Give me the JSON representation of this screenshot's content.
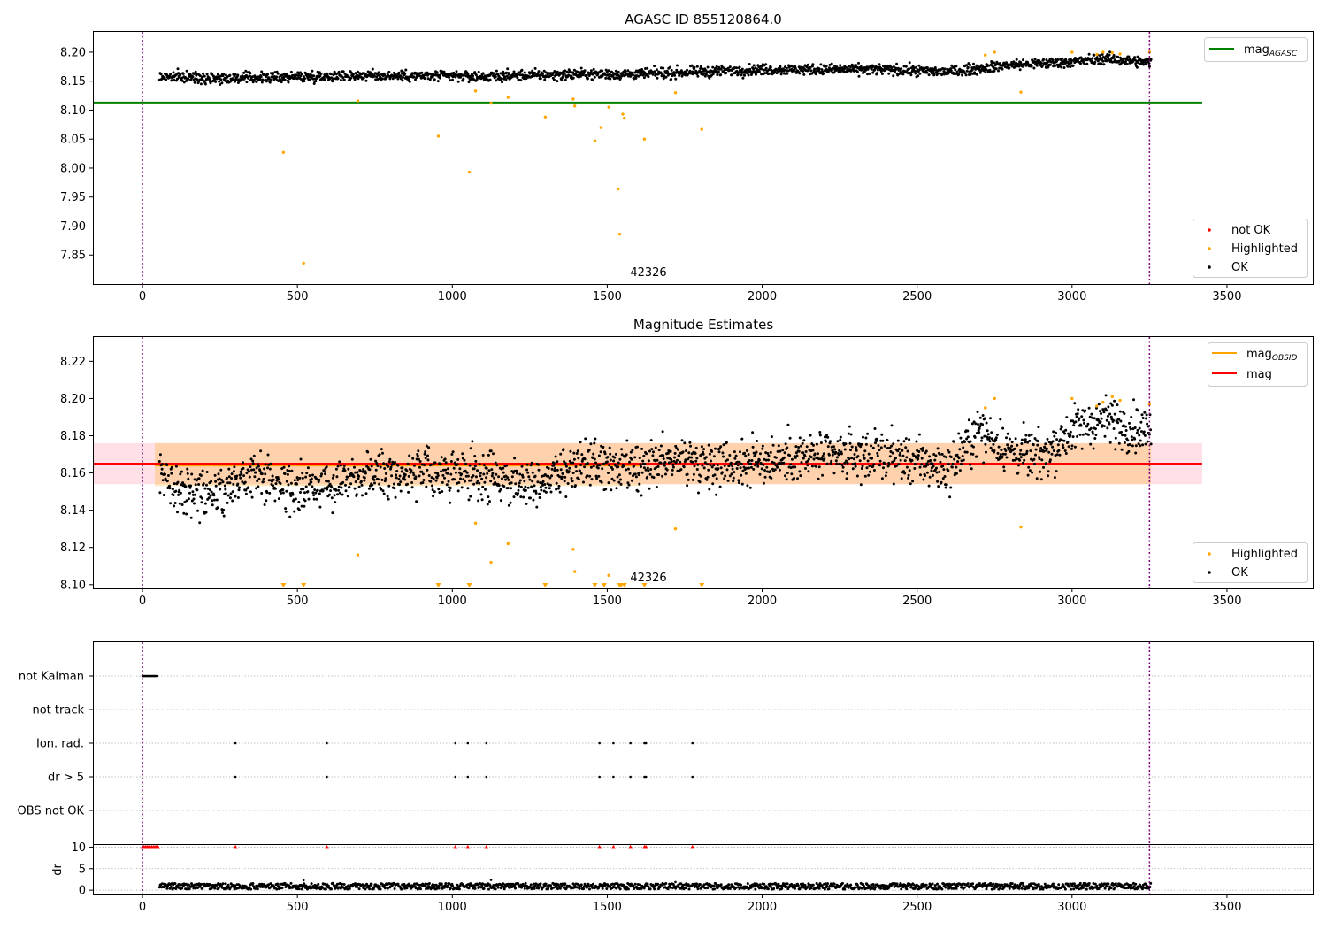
{
  "chart_data": [
    {
      "type": "scatter",
      "title": "AGASC ID 855120864.0",
      "xlim": [
        -160,
        3780
      ],
      "ylim": [
        7.8,
        8.235
      ],
      "xticks": [
        0,
        500,
        1000,
        1500,
        2000,
        2500,
        3000,
        3500
      ],
      "yticks": [
        "7.85",
        "7.90",
        "7.95",
        "8.00",
        "8.05",
        "8.10",
        "8.15",
        "8.20"
      ],
      "vlines": [
        0,
        3250
      ],
      "annotation": {
        "text": "42326",
        "x": 1635,
        "y": 7.815
      },
      "hline": {
        "name": "mag_AGASC",
        "y": 8.113,
        "x_end": 3420,
        "color": "#008000"
      },
      "ok_trend": {
        "x": [
          55,
          300,
          700,
          1100,
          1400,
          1600,
          2000,
          2400,
          2600,
          2800,
          3000,
          3100,
          3250
        ],
        "y": [
          8.158,
          8.155,
          8.16,
          8.158,
          8.162,
          8.162,
          8.17,
          8.17,
          8.166,
          8.178,
          8.183,
          8.189,
          8.182
        ]
      },
      "highlighted": [
        [
          455,
          8.027
        ],
        [
          520,
          7.836
        ],
        [
          695,
          8.116
        ],
        [
          955,
          8.055
        ],
        [
          1055,
          7.993
        ],
        [
          1075,
          8.133
        ],
        [
          1125,
          8.112
        ],
        [
          1180,
          8.122
        ],
        [
          1300,
          8.088
        ],
        [
          1390,
          8.119
        ],
        [
          1395,
          8.107
        ],
        [
          1480,
          8.07
        ],
        [
          1460,
          8.047
        ],
        [
          1505,
          8.105
        ],
        [
          1535,
          7.964
        ],
        [
          1540,
          7.886
        ],
        [
          1550,
          8.093
        ],
        [
          1555,
          8.086
        ],
        [
          1620,
          8.05
        ],
        [
          1720,
          8.13
        ],
        [
          1805,
          8.067
        ],
        [
          2720,
          8.195
        ],
        [
          2750,
          8.2
        ],
        [
          2835,
          8.131
        ],
        [
          3000,
          8.2
        ],
        [
          3080,
          8.196
        ],
        [
          3100,
          8.2
        ],
        [
          3130,
          8.199
        ],
        [
          3155,
          8.197
        ],
        [
          3250,
          8.2
        ]
      ],
      "legend_bottom": [
        "not OK",
        "Highlighted",
        "OK"
      ],
      "legend_top": [
        "mag",
        "AGASC"
      ],
      "colors": {
        "ok": "#000000",
        "highlighted": "#ffa500",
        "not_ok": "#ff0000",
        "vline": "#800080"
      }
    },
    {
      "type": "scatter",
      "title": "Magnitude Estimates",
      "xlim": [
        -160,
        3780
      ],
      "ylim": [
        8.098,
        8.233
      ],
      "xticks": [
        0,
        500,
        1000,
        1500,
        2000,
        2500,
        3000,
        3500
      ],
      "yticks": [
        "8.10",
        "8.12",
        "8.14",
        "8.16",
        "8.18",
        "8.20",
        "8.22"
      ],
      "vlines": [
        0,
        3250
      ],
      "annotation": {
        "text": "42326",
        "x": 1635,
        "y": 8.103
      },
      "mag_line": {
        "name": "mag",
        "y": 8.165,
        "band": [
          8.154,
          8.176
        ],
        "x_end": 3420,
        "color": "#ff0000",
        "band_color": "#ffe0e6"
      },
      "obsid_segments": [
        {
          "x0": 40,
          "x1": 1610,
          "y": 8.164,
          "lo": 8.153,
          "hi": 8.176
        },
        {
          "x0": 1610,
          "x1": 3255,
          "y": 8.165,
          "lo": 8.154,
          "hi": 8.176
        }
      ],
      "ok_trend": {
        "x": [
          55,
          150,
          250,
          350,
          500,
          700,
          900,
          1100,
          1250,
          1450,
          1600,
          1700,
          1900,
          2100,
          2400,
          2600,
          2700,
          2800,
          2900,
          3000,
          3100,
          3250
        ],
        "y": [
          8.158,
          8.15,
          8.15,
          8.16,
          8.15,
          8.16,
          8.16,
          8.158,
          8.155,
          8.165,
          8.16,
          8.168,
          8.165,
          8.168,
          8.17,
          8.162,
          8.183,
          8.172,
          8.168,
          8.183,
          8.189,
          8.182
        ]
      },
      "highlighted": [
        [
          695,
          8.116
        ],
        [
          1075,
          8.133
        ],
        [
          1125,
          8.112
        ],
        [
          1180,
          8.122
        ],
        [
          1390,
          8.119
        ],
        [
          1395,
          8.107
        ],
        [
          1505,
          8.105
        ],
        [
          1720,
          8.13
        ],
        [
          2720,
          8.195
        ],
        [
          2750,
          8.2
        ],
        [
          2835,
          8.131
        ],
        [
          3000,
          8.2
        ],
        [
          3080,
          8.196
        ],
        [
          3100,
          8.198
        ],
        [
          3130,
          8.201
        ],
        [
          3155,
          8.199
        ],
        [
          3250,
          8.197
        ]
      ],
      "below_limit": [
        455,
        520,
        955,
        1055,
        1300,
        1460,
        1490,
        1540,
        1545,
        1555,
        1620,
        1805
      ],
      "legend_bottom": [
        "Highlighted",
        "OK"
      ],
      "legend_top": [
        "mag",
        "OBSID",
        "mag"
      ],
      "colors": {
        "ok": "#000000",
        "highlighted": "#ffa500",
        "obsid": "#ffa500",
        "vline": "#800080"
      }
    },
    {
      "type": "scatter",
      "title": "",
      "xlim": [
        -160,
        3780
      ],
      "xticks": [
        0,
        500,
        1000,
        1500,
        2000,
        2500,
        3000,
        3500
      ],
      "categories": [
        "not Kalman",
        "not track",
        "Ion. rad.",
        "dr > 5",
        "OBS not OK"
      ],
      "flags": {
        "not Kalman": {
          "x_range": [
            0,
            50
          ]
        },
        "not track": {
          "x": []
        },
        "Ion. rad.": {
          "x": [
            300,
            595,
            1010,
            1050,
            1110,
            1475,
            1520,
            1575,
            1620,
            1625,
            1775
          ]
        },
        "dr > 5": {
          "x": [
            300,
            595,
            1010,
            1050,
            1110,
            1475,
            1520,
            1575,
            1620,
            1625,
            1775
          ]
        },
        "OBS not OK": {
          "x": []
        }
      },
      "dr": {
        "ylabel": "dr",
        "yticks": [
          "0",
          "5",
          "10"
        ],
        "ylim": [
          -1,
          10.5
        ],
        "capped_value": 10,
        "capped_x": [
          0,
          5,
          10,
          15,
          20,
          25,
          30,
          35,
          40,
          45,
          50,
          300,
          595,
          1010,
          1050,
          1110,
          1475,
          1520,
          1575,
          1620,
          1625,
          1775
        ],
        "typical_range": [
          0.2,
          1.6
        ],
        "outliers": [
          [
            520,
            2.3
          ],
          [
            1125,
            2.4
          ],
          [
            1720,
            1.9
          ]
        ]
      },
      "vlines": [
        0,
        3250
      ],
      "colors": {
        "ok": "#000000",
        "capped": "#ff0000",
        "vline": "#800080",
        "grid": "#b0b0b0"
      }
    }
  ]
}
